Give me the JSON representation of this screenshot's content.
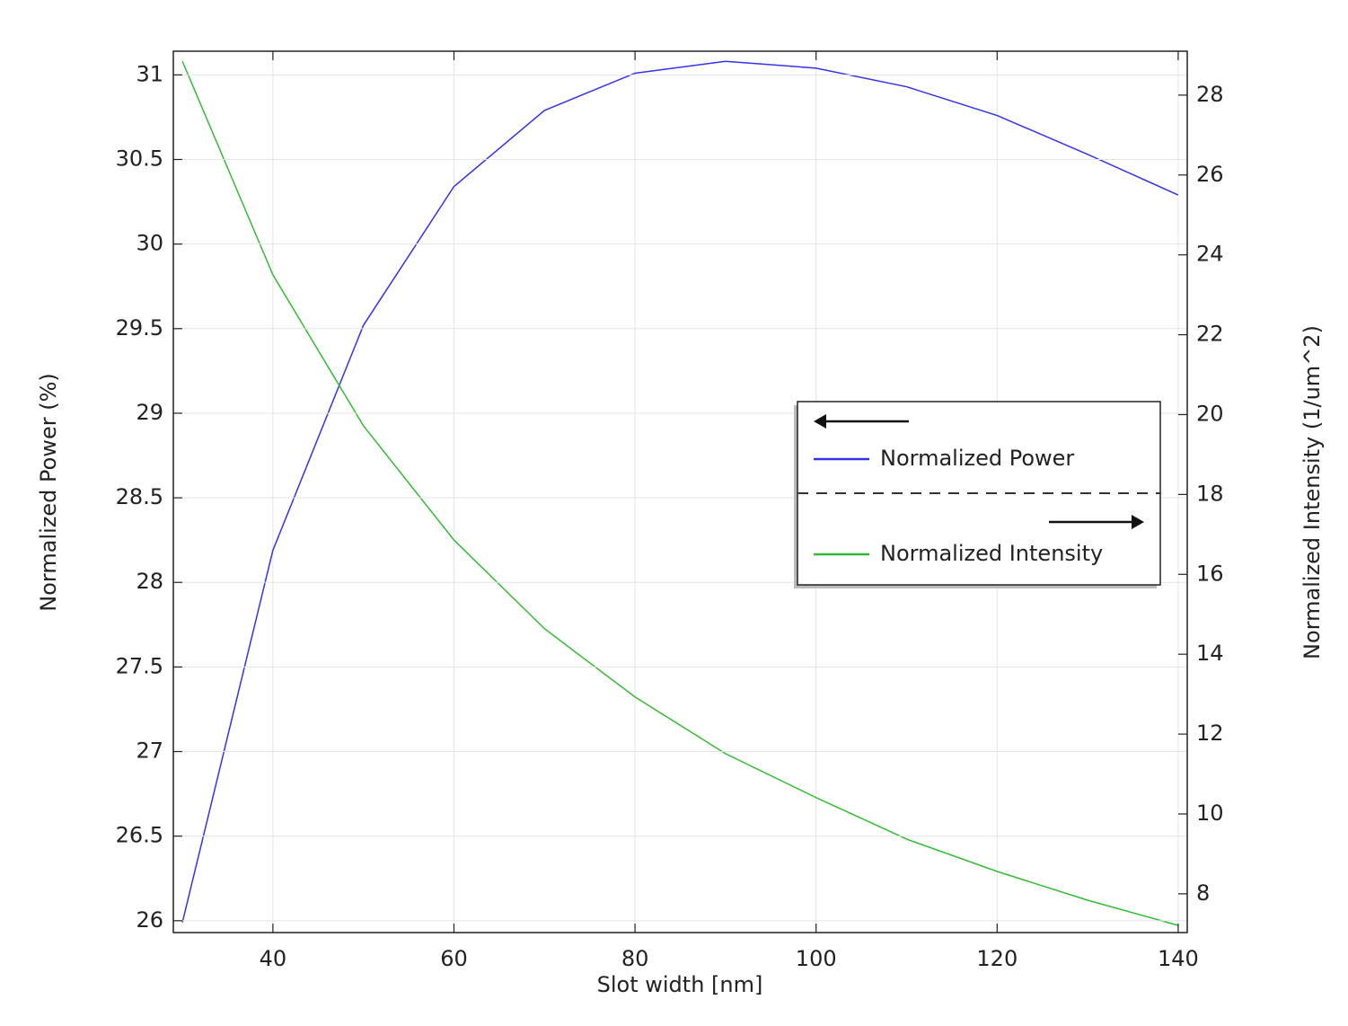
{
  "chart_data": {
    "type": "line",
    "x_label": "Slot width [nm]",
    "y_label": "Normalized Power (%)",
    "y2_label": "Normalized Intensity (1/um^2)",
    "x": [
      30,
      40,
      50,
      60,
      70,
      80,
      90,
      100,
      110,
      120,
      130,
      140
    ],
    "series": [
      {
        "name": "Normalized Power",
        "color": "#3333ee",
        "axis": "y",
        "values": [
          25.99,
          28.19,
          29.52,
          30.34,
          30.79,
          31.01,
          31.08,
          31.04,
          30.93,
          30.76,
          30.53,
          30.29
        ]
      },
      {
        "name": "Normalized Intensity",
        "color": "#33bb33",
        "axis": "y2",
        "values": [
          28.85,
          23.5,
          19.72,
          16.86,
          14.64,
          12.93,
          11.51,
          10.41,
          9.37,
          8.56,
          7.84,
          7.21
        ]
      }
    ],
    "xlim": [
      29,
      141
    ],
    "xticks": [
      40,
      60,
      80,
      100,
      120,
      140
    ],
    "ylim": [
      25.93,
      31.14
    ],
    "yticks": [
      26,
      26.5,
      27,
      27.5,
      28,
      28.5,
      29,
      29.5,
      30,
      30.5,
      31
    ],
    "y2lim": [
      7.03,
      29.1
    ],
    "y2ticks": [
      8,
      10,
      12,
      14,
      16,
      18,
      20,
      22,
      24,
      26,
      28
    ],
    "grid": true
  }
}
